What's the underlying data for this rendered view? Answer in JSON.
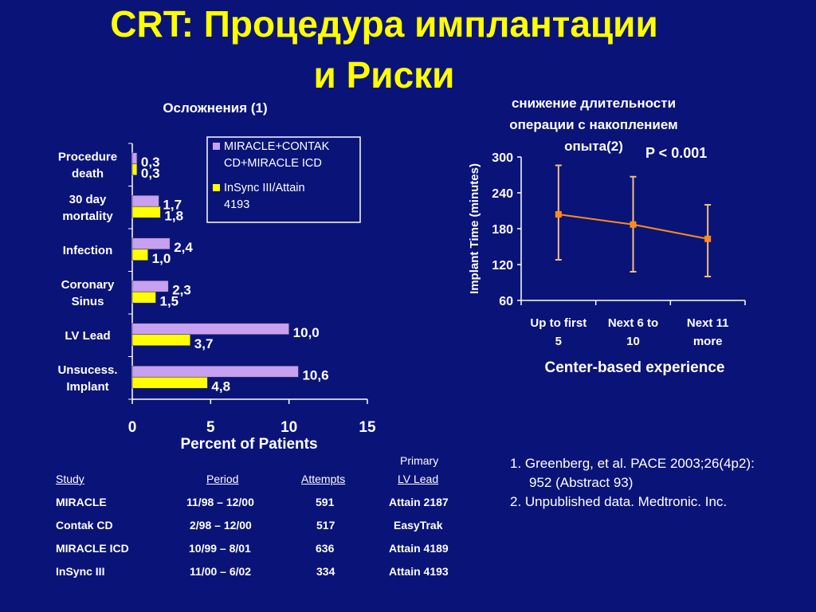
{
  "slide": {
    "title_line1": "CRT: Процедура имплантации",
    "title_line2": "и Риски"
  },
  "chart_data": [
    {
      "type": "bar",
      "title": "Осложнения (1)",
      "xlabel": "Percent of Patients",
      "xlim": [
        0,
        15
      ],
      "xticks": [
        "0",
        "5",
        "10",
        "15"
      ],
      "categories": [
        [
          "Procedure",
          "death"
        ],
        [
          "30 day",
          "mortality"
        ],
        [
          "Infection"
        ],
        [
          "Coronary",
          "Sinus"
        ],
        [
          "LV Lead"
        ],
        [
          "Unsucess.",
          "Implant"
        ]
      ],
      "series": [
        {
          "name_lines": [
            "MIRACLE+CONTAK",
            "CD+MIRACLE ICD"
          ],
          "values": [
            0.3,
            1.7,
            2.4,
            2.3,
            10.0,
            10.6
          ],
          "labels": [
            "0,3",
            "1,7",
            "2,4",
            "2,3",
            "10,0",
            "10,6"
          ],
          "color": "#c8a0f0"
        },
        {
          "name_lines": [
            "InSync III/Attain",
            "4193"
          ],
          "values": [
            0.3,
            1.8,
            1.0,
            1.5,
            3.7,
            4.8
          ],
          "labels": [
            "0,3",
            "1,8",
            "1,0",
            "1,5",
            "3,7",
            "4,8"
          ],
          "color": "#ffff00"
        }
      ],
      "legend": "top-right"
    },
    {
      "type": "line",
      "title_lines": [
        "снижение длительности",
        "операции с накоплением",
        "опыта(2)"
      ],
      "annotation": "P < 0.001",
      "ylabel": "Implant Time (minutes)",
      "xlabel": "Center-based experience",
      "ylim": [
        60,
        300
      ],
      "yticks": [
        60,
        120,
        180,
        240,
        300
      ],
      "categories": [
        [
          "Up to first",
          "5"
        ],
        [
          "Next 6 to",
          "10"
        ],
        [
          "Next 11",
          "more"
        ]
      ],
      "values": [
        204,
        187,
        163
      ],
      "error_high": [
        286,
        267,
        220
      ],
      "error_low": [
        128,
        108,
        100
      ],
      "line_color": "#ff8c1a",
      "error_color": "#f0c080"
    }
  ],
  "table": {
    "headers": [
      "Study",
      "Period",
      "Attempts",
      "Primary",
      "LV Lead"
    ],
    "rows": [
      [
        "MIRACLE",
        "11/98 – 12/00",
        "591",
        "Attain 2187"
      ],
      [
        "Contak CD",
        "2/98 – 12/00",
        "517",
        "EasyTrak"
      ],
      [
        "MIRACLE ICD",
        "10/99 – 8/01",
        "636",
        "Attain 4189"
      ],
      [
        "InSync III",
        "11/00 – 6/02",
        "334",
        "Attain 4193"
      ]
    ]
  },
  "references": {
    "ref1_line1": "1. Greenberg, et al. PACE 2003;26(4p2):",
    "ref1_line2": "952 (Abstract 93)",
    "ref2": "2. Unpublished data. Medtronic. Inc."
  },
  "colors": {
    "background": "#0a1478",
    "title": "#ffff00"
  }
}
